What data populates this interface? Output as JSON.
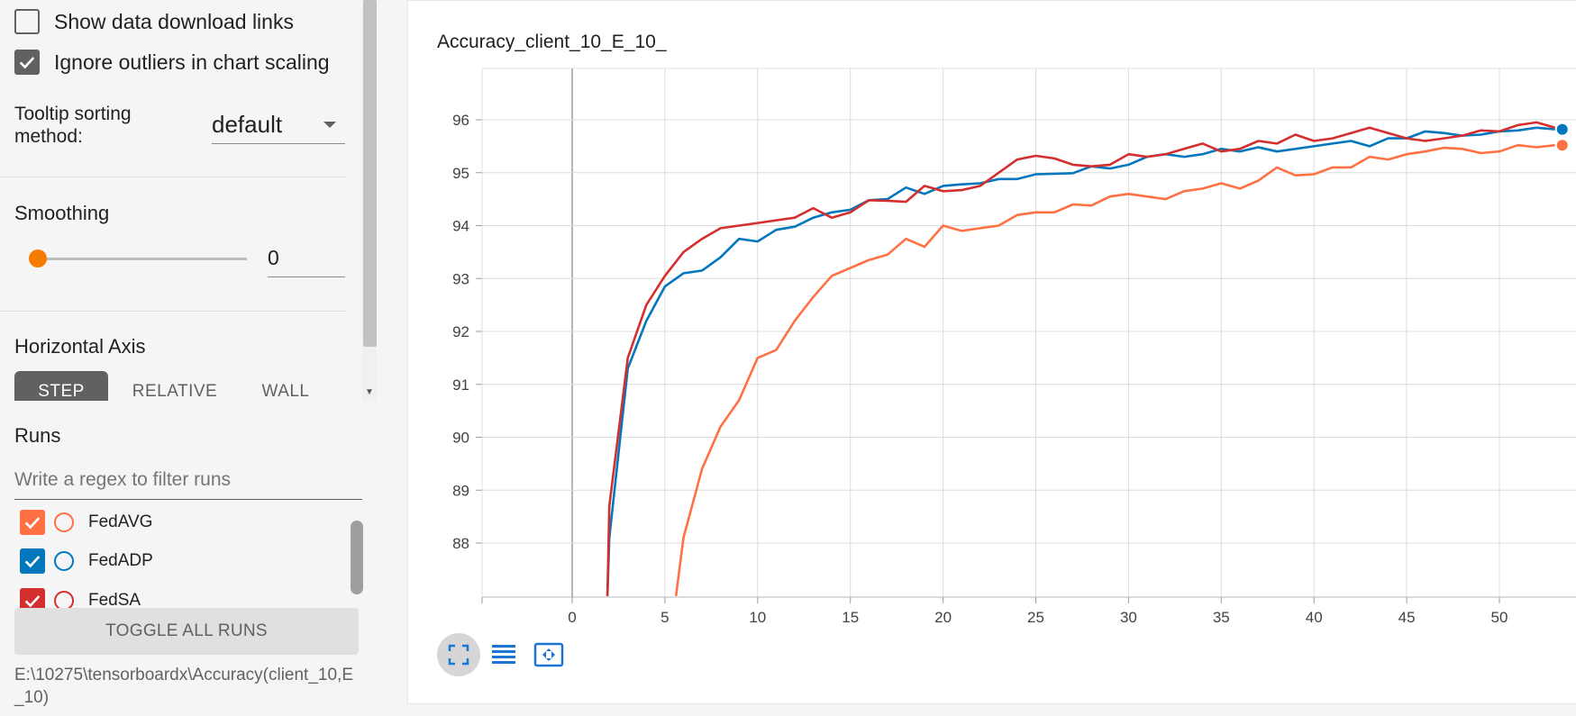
{
  "settings": {
    "show_download_links": {
      "label": "Show data download links",
      "checked": false
    },
    "ignore_outliers": {
      "label": "Ignore outliers in chart scaling",
      "checked": true
    },
    "tooltip_sorting": {
      "label": "Tooltip sorting method:",
      "value": "default"
    },
    "smoothing": {
      "label": "Smoothing",
      "value": "0"
    },
    "horizontal_axis": {
      "label": "Horizontal Axis",
      "options": [
        "STEP",
        "RELATIVE",
        "WALL"
      ],
      "selected": "STEP"
    }
  },
  "runs": {
    "label": "Runs",
    "filter_placeholder": "Write a regex to filter runs",
    "items": [
      {
        "name": "FedAVG",
        "color": "#ff7043",
        "checked": true
      },
      {
        "name": "FedADP",
        "color": "#0277bd",
        "checked": true
      },
      {
        "name": "FedSA",
        "color": "#d32f2f",
        "checked": true
      }
    ],
    "toggle_all_label": "TOGGLE ALL RUNS",
    "data_location": "E:\\10275\\tensorboardx\\Accuracy(client_10,E_10)"
  },
  "card": {
    "title": "Accuracy_client_10_E_10_",
    "tools": [
      "fit-to-data-icon",
      "list-icon",
      "expand-icon"
    ]
  },
  "chart_data": {
    "type": "line",
    "title": "Accuracy_client_10_E_10_",
    "xlabel": "",
    "ylabel": "",
    "x_ticks": [
      0,
      5,
      10,
      15,
      20,
      25,
      30,
      35,
      40,
      45,
      50
    ],
    "y_ticks": [
      88,
      89,
      90,
      91,
      92,
      93,
      94,
      95,
      96
    ],
    "xlim": [
      -5,
      54
    ],
    "ylim": [
      87,
      97
    ],
    "grid": true,
    "series": [
      {
        "color": "#ff7043",
        "x": [
          5.6,
          6,
          7,
          8,
          9,
          10,
          11,
          12,
          13,
          14,
          15,
          16,
          17,
          18,
          19,
          20,
          21,
          22,
          23,
          24,
          25,
          26,
          27,
          28,
          29,
          30,
          31,
          32,
          33,
          34,
          35,
          36,
          37,
          38,
          39,
          40,
          41,
          42,
          43,
          44,
          45,
          46,
          47,
          48,
          49,
          50,
          51,
          52,
          53
        ],
        "y": [
          87.0,
          88.1,
          89.4,
          90.2,
          90.7,
          91.5,
          91.65,
          92.2,
          92.65,
          93.05,
          93.2,
          93.35,
          93.45,
          93.75,
          93.6,
          94.0,
          93.9,
          93.95,
          94.0,
          94.2,
          94.25,
          94.25,
          94.4,
          94.38,
          94.55,
          94.6,
          94.55,
          94.5,
          94.65,
          94.7,
          94.8,
          94.7,
          94.85,
          95.1,
          94.95,
          94.97,
          95.1,
          95.1,
          95.3,
          95.25,
          95.35,
          95.4,
          95.47,
          95.45,
          95.37,
          95.4,
          95.52,
          95.48,
          95.52
        ]
      },
      {
        "color": "#0277bd",
        "x": [
          1.9,
          2,
          3,
          4,
          5,
          6,
          7,
          8,
          9,
          10,
          11,
          12,
          13,
          14,
          15,
          16,
          17,
          18,
          19,
          20,
          21,
          22,
          23,
          24,
          25,
          26,
          27,
          28,
          29,
          30,
          31,
          32,
          33,
          34,
          35,
          36,
          37,
          38,
          39,
          40,
          41,
          42,
          43,
          44,
          45,
          46,
          47,
          48,
          49,
          50,
          51,
          52,
          53
        ],
        "y": [
          87.0,
          88.1,
          91.3,
          92.2,
          92.85,
          93.1,
          93.15,
          93.4,
          93.75,
          93.7,
          93.92,
          93.98,
          94.15,
          94.25,
          94.3,
          94.48,
          94.5,
          94.72,
          94.6,
          94.75,
          94.78,
          94.8,
          94.88,
          94.88,
          94.97,
          94.98,
          94.99,
          95.12,
          95.08,
          95.15,
          95.3,
          95.35,
          95.3,
          95.35,
          95.45,
          95.4,
          95.48,
          95.4,
          95.45,
          95.5,
          95.55,
          95.6,
          95.5,
          95.65,
          95.65,
          95.78,
          95.75,
          95.7,
          95.72,
          95.78,
          95.8,
          95.85,
          95.82
        ]
      },
      {
        "color": "#d32f2f",
        "x": [
          1.9,
          2,
          3,
          4,
          5,
          6,
          7,
          8,
          9,
          10,
          11,
          12,
          13,
          14,
          15,
          16,
          17,
          18,
          19,
          20,
          21,
          22,
          23,
          24,
          25,
          26,
          27,
          28,
          29,
          30,
          31,
          32,
          33,
          34,
          35,
          36,
          37,
          38,
          39,
          40,
          41,
          42,
          43,
          44,
          45,
          46,
          47,
          48,
          49,
          50,
          51,
          52,
          53
        ],
        "y": [
          87.0,
          88.7,
          91.5,
          92.5,
          93.05,
          93.5,
          93.75,
          93.95,
          94.0,
          94.05,
          94.1,
          94.15,
          94.33,
          94.15,
          94.25,
          94.48,
          94.47,
          94.45,
          94.75,
          94.65,
          94.67,
          94.75,
          95.0,
          95.25,
          95.32,
          95.27,
          95.15,
          95.12,
          95.15,
          95.35,
          95.3,
          95.35,
          95.45,
          95.55,
          95.4,
          95.45,
          95.6,
          95.55,
          95.72,
          95.6,
          95.65,
          95.75,
          95.85,
          95.75,
          95.65,
          95.6,
          95.65,
          95.7,
          95.8,
          95.78,
          95.9,
          95.95,
          95.85
        ]
      }
    ]
  }
}
